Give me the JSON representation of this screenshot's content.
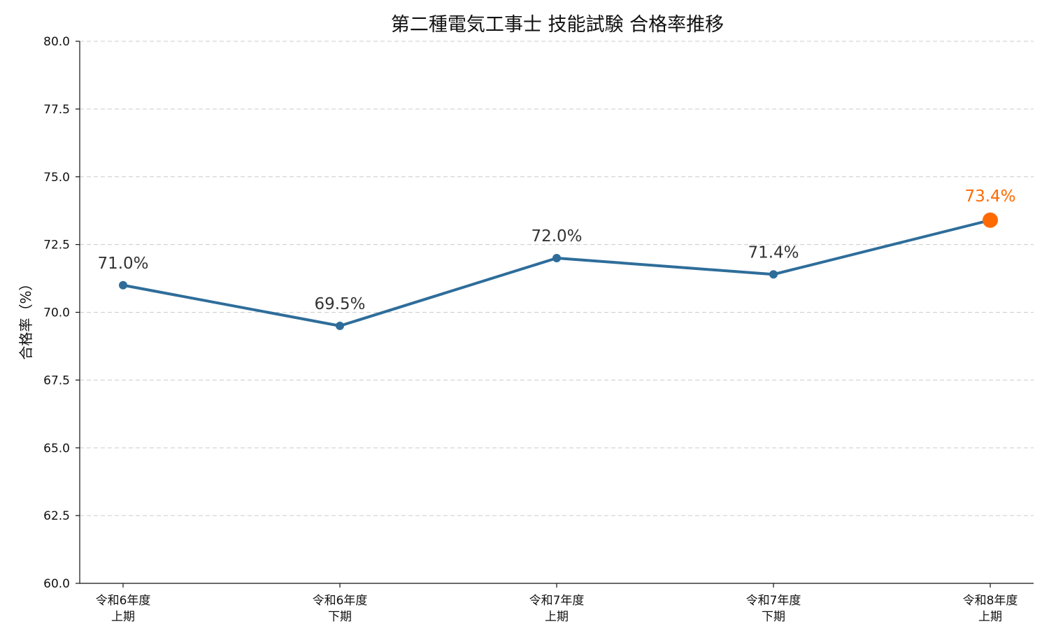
{
  "chart_data": {
    "type": "line",
    "title": "第二種電気工事士 技能試験 合格率推移",
    "ylabel": "合格率（%）",
    "xlabel": "",
    "ylim": [
      60.0,
      80.0
    ],
    "yticks": [
      "60.0",
      "62.5",
      "65.0",
      "67.5",
      "70.0",
      "72.5",
      "75.0",
      "77.5",
      "80.0"
    ],
    "grid": "horizontal dashed",
    "categories": [
      [
        "令和6年度",
        "上期"
      ],
      [
        "令和6年度",
        "下期"
      ],
      [
        "令和7年度",
        "上期"
      ],
      [
        "令和7年度",
        "下期"
      ],
      [
        "令和8年度",
        "上期"
      ]
    ],
    "series": [
      {
        "values": [
          71.0,
          69.5,
          72.0,
          71.4,
          73.4
        ],
        "data_labels": [
          "71.0%",
          "69.5%",
          "72.0%",
          "71.4%",
          "73.4%"
        ],
        "color": "#2e6d9a",
        "highlight_color": "#ff6a00",
        "highlight_index": 4
      }
    ]
  }
}
